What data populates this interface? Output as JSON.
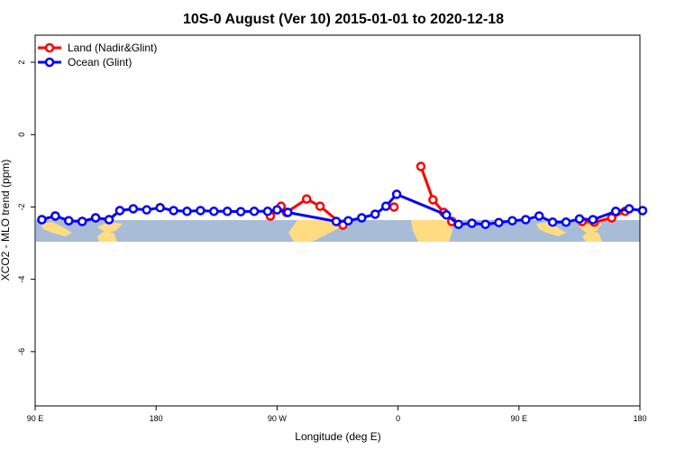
{
  "chart_data": {
    "type": "line",
    "title": "10S-0 August (Ver 10)   2015-01-01 to 2020-12-18",
    "xlabel": "Longitude (deg E)",
    "ylabel": "XCO2 - MLO trend (ppm)",
    "xlim": [
      90,
      540
    ],
    "ylim": [
      -7.5,
      2.75
    ],
    "x_ticks": [
      {
        "value": 90,
        "label": "90 E"
      },
      {
        "value": 180,
        "label": "180"
      },
      {
        "value": 270,
        "label": "90 W"
      },
      {
        "value": 360,
        "label": "0"
      },
      {
        "value": 450,
        "label": "90 E"
      },
      {
        "value": 540,
        "label": "180"
      }
    ],
    "y_ticks": [
      {
        "value": 2,
        "label": "2"
      },
      {
        "value": 0,
        "label": "0"
      },
      {
        "value": -2,
        "label": "-2"
      },
      {
        "value": -4,
        "label": "-4"
      },
      {
        "value": -6,
        "label": "-6"
      }
    ],
    "legend_position": "top-left",
    "grid": false,
    "series": [
      {
        "name": "Land (Nadir&Glint)",
        "color": "#ff0000",
        "segments": [
          [
            [
              95,
              -2.35
            ],
            [
              105,
              -2.25
            ],
            [
              115,
              -2.38
            ],
            [
              125,
              -2.4
            ],
            [
              135,
              -2.3
            ],
            [
              145,
              -2.35
            ],
            [
              153,
              -2.1
            ]
          ],
          [
            [
              265,
              -2.25
            ],
            [
              273,
              -1.98
            ],
            [
              277,
              -2.15
            ],
            [
              292,
              -1.78
            ],
            [
              302,
              -1.98
            ],
            [
              319,
              -2.5
            ]
          ],
          [
            [
              357,
              -2.0
            ]
          ],
          [
            [
              377,
              -0.88
            ],
            [
              386,
              -1.8
            ],
            [
              394,
              -2.15
            ],
            [
              400,
              -2.4
            ]
          ],
          [
            [
              497,
              -2.4
            ],
            [
              506,
              -2.42
            ],
            [
              519,
              -2.3
            ],
            [
              529,
              -2.12
            ]
          ]
        ]
      },
      {
        "name": "Ocean (Glint)",
        "color": "#0000ff",
        "points": [
          [
            95,
            -2.35
          ],
          [
            105,
            -2.25
          ],
          [
            115,
            -2.38
          ],
          [
            125,
            -2.4
          ],
          [
            135,
            -2.3
          ],
          [
            145,
            -2.35
          ],
          [
            153,
            -2.1
          ],
          [
            163,
            -2.05
          ],
          [
            173,
            -2.08
          ],
          [
            183,
            -2.02
          ],
          [
            193,
            -2.1
          ],
          [
            203,
            -2.12
          ],
          [
            213,
            -2.1
          ],
          [
            223,
            -2.12
          ],
          [
            233,
            -2.12
          ],
          [
            243,
            -2.13
          ],
          [
            253,
            -2.12
          ],
          [
            263,
            -2.12
          ],
          [
            270,
            -2.08
          ],
          [
            278,
            -2.15
          ],
          [
            314,
            -2.4
          ],
          [
            323,
            -2.38
          ],
          [
            333,
            -2.3
          ],
          [
            343,
            -2.2
          ],
          [
            351,
            -1.98
          ],
          [
            359,
            -1.65
          ],
          [
            396,
            -2.22
          ],
          [
            405,
            -2.48
          ],
          [
            415,
            -2.45
          ],
          [
            425,
            -2.48
          ],
          [
            435,
            -2.43
          ],
          [
            445,
            -2.38
          ],
          [
            455,
            -2.35
          ],
          [
            465,
            -2.25
          ],
          [
            475,
            -2.42
          ],
          [
            485,
            -2.42
          ],
          [
            495,
            -2.33
          ],
          [
            505,
            -2.35
          ],
          [
            522,
            -2.12
          ],
          [
            532,
            -2.05
          ],
          [
            542,
            -2.1
          ]
        ]
      }
    ]
  }
}
